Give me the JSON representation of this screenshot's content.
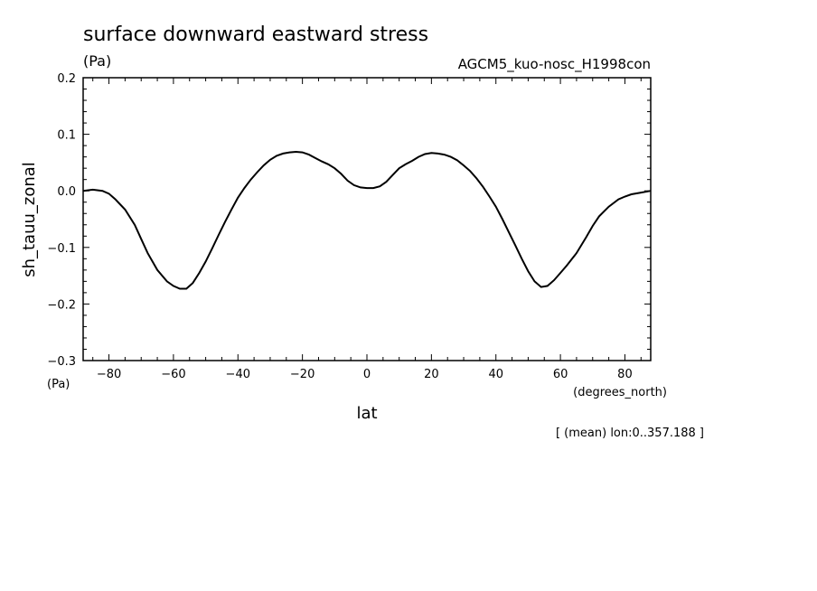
{
  "chart_data": {
    "type": "line",
    "title": "surface downward eastward stress",
    "units_label": "(Pa)",
    "dataset_label": "AGCM5_kuo-nosc_H1998con",
    "ylabel": "sh_tauu_zonal",
    "y_units": "(Pa)",
    "xlabel": "lat",
    "x_units": "(degrees_north)",
    "footnote": "[ (mean) lon:0..357.188 ]",
    "xlim": [
      -88,
      88
    ],
    "ylim": [
      -0.3,
      0.2
    ],
    "x_ticks": [
      -80,
      -60,
      -40,
      -20,
      0,
      20,
      40,
      60,
      80
    ],
    "x_tick_labels": [
      "−80",
      "−60",
      "−40",
      "−20",
      "0",
      "20",
      "40",
      "60",
      "80"
    ],
    "y_ticks": [
      0.2,
      0.1,
      0.0,
      -0.1,
      -0.2,
      -0.3
    ],
    "y_tick_labels": [
      "0.2",
      "0.1",
      "0.0",
      "−0.1",
      "−0.2",
      "−0.3"
    ],
    "grid": false,
    "series": [
      {
        "x": [
          -88,
          -85,
          -82,
          -80,
          -78,
          -75,
          -72,
          -70,
          -68,
          -65,
          -62,
          -60,
          -58,
          -56,
          -54,
          -52,
          -50,
          -48,
          -46,
          -44,
          -42,
          -40,
          -38,
          -36,
          -34,
          -32,
          -30,
          -28,
          -26,
          -24,
          -22,
          -20,
          -18,
          -16,
          -14,
          -12,
          -10,
          -8,
          -6,
          -4,
          -2,
          0,
          2,
          4,
          6,
          8,
          10,
          12,
          14,
          16,
          18,
          20,
          22,
          24,
          26,
          28,
          30,
          32,
          34,
          36,
          38,
          40,
          42,
          44,
          46,
          48,
          50,
          52,
          54,
          56,
          58,
          60,
          62,
          65,
          68,
          70,
          72,
          75,
          78,
          80,
          82,
          85,
          88
        ],
        "y": [
          0.0,
          0.002,
          0.0,
          -0.005,
          -0.015,
          -0.033,
          -0.06,
          -0.085,
          -0.11,
          -0.14,
          -0.16,
          -0.168,
          -0.173,
          -0.173,
          -0.163,
          -0.145,
          -0.125,
          -0.102,
          -0.078,
          -0.055,
          -0.033,
          -0.012,
          0.005,
          0.02,
          0.033,
          0.045,
          0.055,
          0.062,
          0.066,
          0.068,
          0.069,
          0.068,
          0.064,
          0.058,
          0.052,
          0.047,
          0.04,
          0.03,
          0.018,
          0.01,
          0.006,
          0.005,
          0.005,
          0.008,
          0.016,
          0.028,
          0.04,
          0.047,
          0.053,
          0.06,
          0.065,
          0.067,
          0.066,
          0.064,
          0.06,
          0.054,
          0.045,
          0.035,
          0.022,
          0.007,
          -0.01,
          -0.028,
          -0.05,
          -0.073,
          -0.096,
          -0.12,
          -0.142,
          -0.16,
          -0.17,
          -0.168,
          -0.158,
          -0.145,
          -0.132,
          -0.11,
          -0.082,
          -0.062,
          -0.045,
          -0.028,
          -0.015,
          -0.01,
          -0.006,
          -0.003,
          0.0
        ]
      }
    ]
  }
}
